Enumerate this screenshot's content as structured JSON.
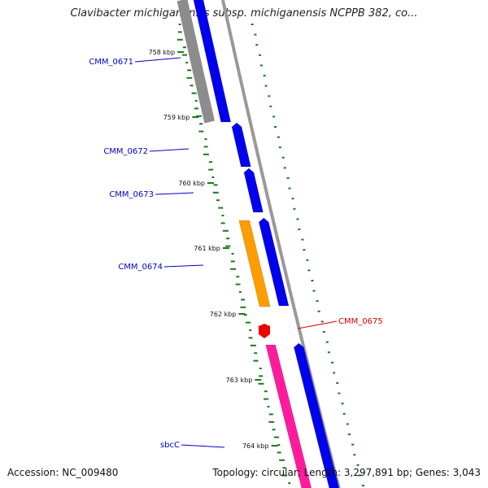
{
  "title": "Clavibacter michiganensis subsp. michiganensis NCPPB 382, co...",
  "footer": {
    "accession": "Accession: NC_009480",
    "topology": "Topology: circular; Length: 3,297,891 bp; Genes: 3,043"
  },
  "colors": {
    "forward_cds": "#0000ee",
    "reverse_cds_orange": "#ff9c00",
    "reverse_cds_pink": "#ff1c9c",
    "highlight_cds": "#ee0000",
    "backbone": "#8c8c8c",
    "gc_skew": "#1a7a1a",
    "label_blue": "#0000cc",
    "label_red": "#dd0000"
  },
  "ticks": [
    "758 kbp",
    "759 kbp",
    "760 kbp",
    "761 kbp",
    "762 kbp",
    "763 kbp",
    "764 kbp"
  ],
  "genes": [
    {
      "label": "CMM_0671",
      "strand": "forward",
      "color": "blue"
    },
    {
      "label": "CMM_0672",
      "strand": "forward",
      "color": "blue"
    },
    {
      "label": "CMM_0673",
      "strand": "forward",
      "color": "blue"
    },
    {
      "label": "CMM_0674",
      "strand": "reverse",
      "color": "orange"
    },
    {
      "label": "CMM_0675",
      "strand": "forward",
      "color": "red"
    },
    {
      "label": "sbcC",
      "strand": "reverse",
      "color": "pink"
    }
  ]
}
